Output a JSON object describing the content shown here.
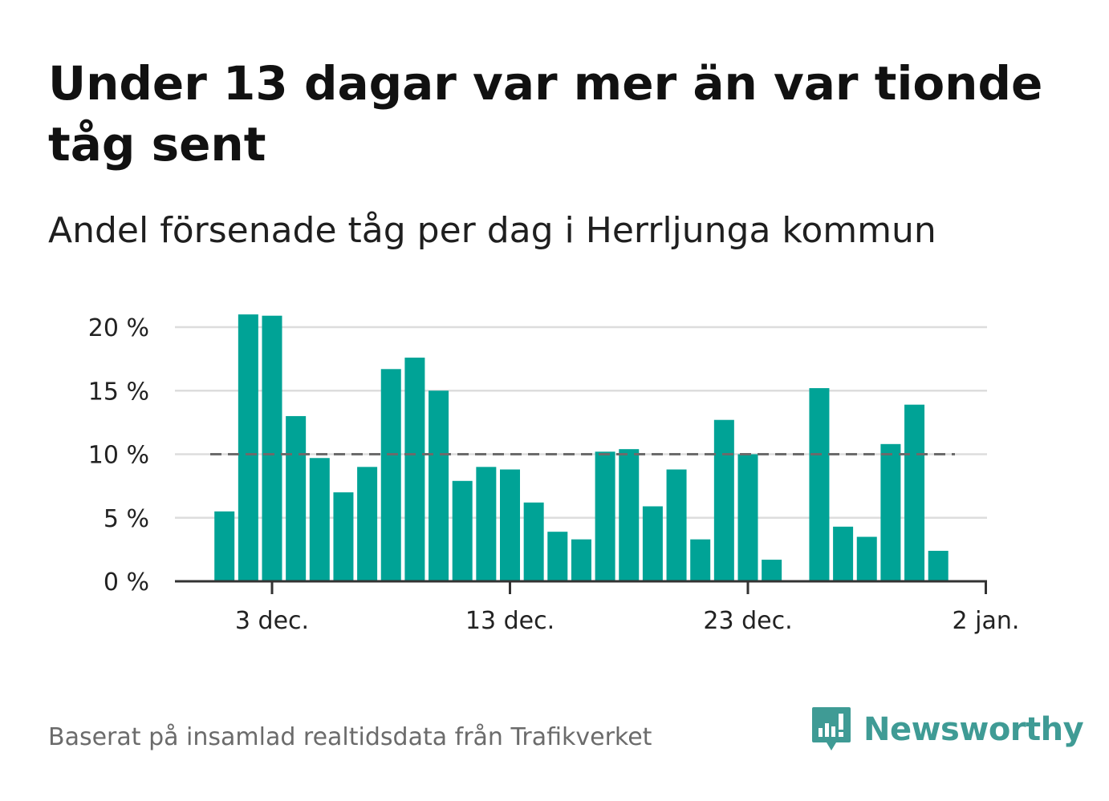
{
  "title": "Under 13 dagar var mer än var tionde tåg sent",
  "subtitle": "Andel försenade tåg per dag i Herrljunga kommun",
  "source": "Baserat på insamlad realtidsdata från Trafikverket",
  "logo_text": "Newsworthy",
  "colors": {
    "bar": "#00a396",
    "reference_line": "#6b6b6b",
    "grid": "#dddddd",
    "axis": "#333333",
    "logo": "#3f9b95"
  },
  "chart_data": {
    "type": "bar",
    "title": "Under 13 dagar var mer än var tionde tåg sent",
    "subtitle": "Andel försenade tåg per dag i Herrljunga kommun",
    "ylim": [
      0,
      20
    ],
    "y_ticks": [
      0,
      5,
      10,
      15,
      20
    ],
    "y_tick_labels": [
      "0 %",
      "5 %",
      "10 %",
      "15 %",
      "20 %"
    ],
    "x_ticks": [
      {
        "date": "2023-12-03",
        "label": "3 dec."
      },
      {
        "date": "2023-12-13",
        "label": "13 dec."
      },
      {
        "date": "2023-12-23",
        "label": "23 dec."
      },
      {
        "date": "2024-01-02",
        "label": "2 jan."
      }
    ],
    "reference_line": 10,
    "grid": true,
    "series": [
      {
        "x": [
          "2023-12-01",
          "2023-12-02",
          "2023-12-03",
          "2023-12-04",
          "2023-12-05",
          "2023-12-06",
          "2023-12-07",
          "2023-12-08",
          "2023-12-09",
          "2023-12-10",
          "2023-12-11",
          "2023-12-12",
          "2023-12-13",
          "2023-12-14",
          "2023-12-15",
          "2023-12-16",
          "2023-12-17",
          "2023-12-18",
          "2023-12-19",
          "2023-12-20",
          "2023-12-21",
          "2023-12-22",
          "2023-12-23",
          "2023-12-24",
          "2023-12-25",
          "2023-12-26",
          "2023-12-27",
          "2023-12-28",
          "2023-12-29",
          "2023-12-30",
          "2023-12-31",
          "2024-01-01"
        ],
        "values": [
          5.5,
          21.0,
          20.9,
          13.0,
          9.7,
          7.0,
          9.0,
          16.7,
          17.6,
          15.0,
          7.9,
          9.0,
          8.8,
          6.2,
          3.9,
          3.3,
          10.2,
          10.4,
          5.9,
          8.8,
          3.3,
          12.7,
          10.0,
          1.7,
          null,
          15.2,
          4.3,
          3.5,
          10.8,
          13.9,
          2.4,
          null
        ]
      }
    ]
  }
}
